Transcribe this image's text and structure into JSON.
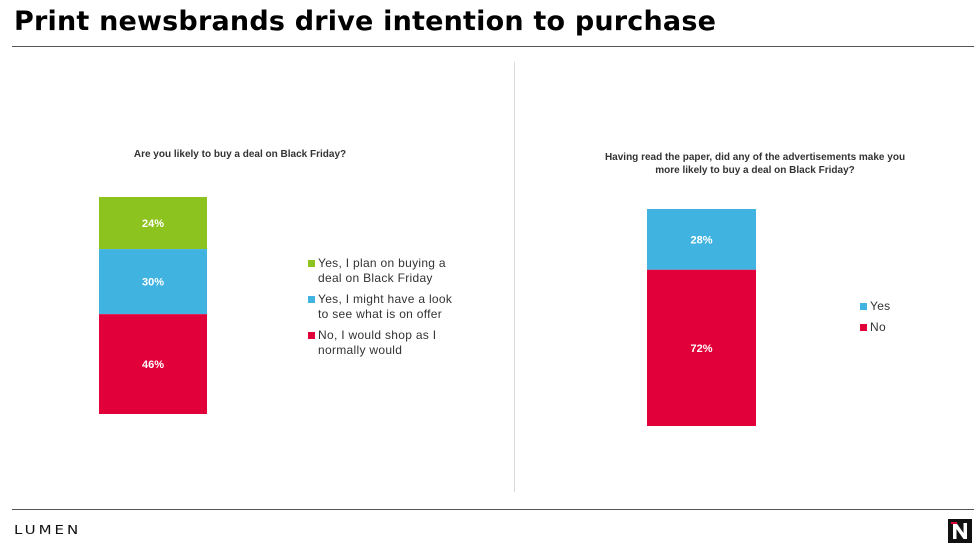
{
  "title": "Print newsbrands drive intention to purchase",
  "chart_data": [
    {
      "type": "bar",
      "stacked": true,
      "title": "Are you likely to buy a deal on Black Friday?",
      "categories": [
        ""
      ],
      "series": [
        {
          "name": "Yes, I plan on buying a deal on Black Friday",
          "values": [
            24
          ],
          "label": "24%",
          "color": "#8dc31e"
        },
        {
          "name": "Yes, I might have a look to see what is on offer",
          "values": [
            30
          ],
          "label": "30%",
          "color": "#40b3e0"
        },
        {
          "name": "No, I would shop as I normally would",
          "values": [
            46
          ],
          "label": "46%",
          "color": "#e1003a"
        }
      ],
      "ylim": [
        0,
        100
      ],
      "grid": false,
      "legend": "right"
    },
    {
      "type": "bar",
      "stacked": true,
      "title": "Having read the paper, did any of the advertisements make you more likely to buy a deal on Black Friday?",
      "categories": [
        ""
      ],
      "series": [
        {
          "name": "Yes",
          "values": [
            28
          ],
          "label": "28%",
          "color": "#40b3e0"
        },
        {
          "name": "No",
          "values": [
            72
          ],
          "label": "72%",
          "color": "#e1003a"
        }
      ],
      "ylim": [
        0,
        100
      ],
      "grid": false,
      "legend": "right"
    }
  ],
  "footer": {
    "logo_text": "LUMEN",
    "logo_icon": "newsworks-n-icon"
  }
}
